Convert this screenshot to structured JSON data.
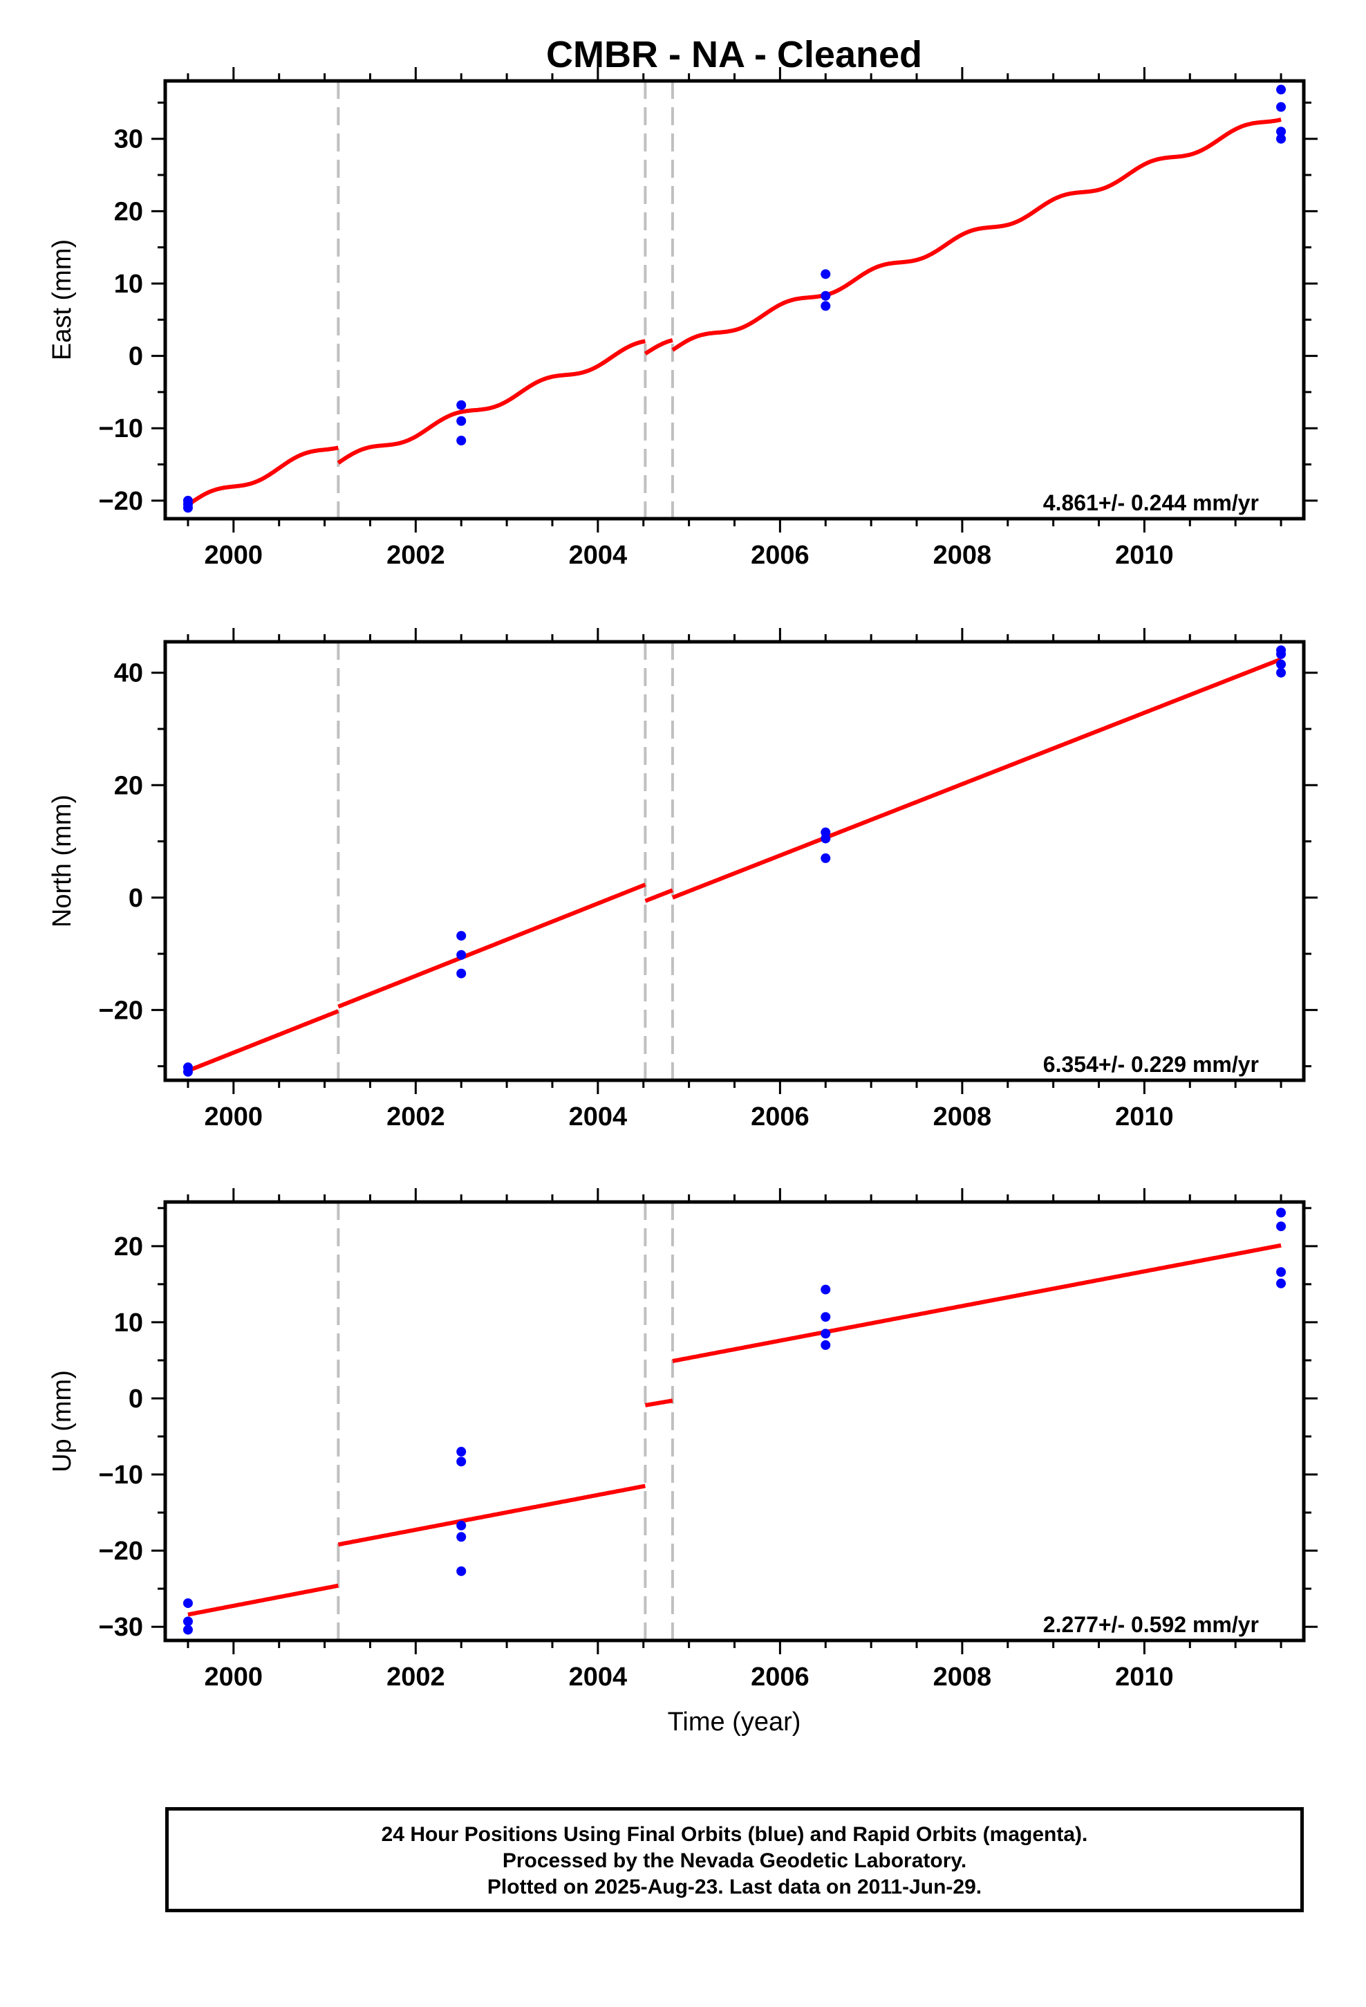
{
  "title": "CMBR  - NA - Cleaned",
  "x_axis_label": "Time (year)",
  "footer": {
    "line1": "24 Hour Positions Using Final Orbits (blue) and Rapid Orbits (magenta).",
    "line2": "Processed by the Nevada Geodetic Laboratory.",
    "line3": "Plotted on 2025-Aug-23. Last data on 2011-Jun-29."
  },
  "colors": {
    "model": "#ff0000",
    "final_orbits": "#0000ff",
    "offset_lines": "#c0c0c0",
    "axes": "#000000"
  },
  "chart_data": [
    {
      "type": "scatter",
      "ylabel": "East (mm)",
      "xlim": [
        1999.25,
        2011.75
      ],
      "ylim": [
        -22.5,
        38.0
      ],
      "xticks": [
        2000,
        2002,
        2004,
        2006,
        2008,
        2010
      ],
      "xtick_labels": [
        "2000",
        "2002",
        "2004",
        "2006",
        "2008",
        "2010"
      ],
      "yticks": [
        -20,
        -10,
        0,
        10,
        20,
        30
      ],
      "ytick_labels": [
        "−20",
        "−10",
        "0",
        "10",
        "20",
        "30"
      ],
      "rate_label": "4.861+/- 0.244 mm/yr",
      "offset_epochs": [
        2001.15,
        2004.52,
        2004.82
      ],
      "model": {
        "name": "model",
        "segments": [
          [
            [
              1999.5,
              -20.6
            ],
            [
              2001.15,
              -12.2
            ]
          ],
          [
            [
              2001.15,
              -14.8
            ],
            [
              2004.52,
              1.6
            ]
          ],
          [
            [
              2004.52,
              0.3
            ],
            [
              2004.82,
              1.6
            ]
          ],
          [
            [
              2004.82,
              0.8
            ],
            [
              2011.5,
              33.2
            ]
          ]
        ],
        "seasonal_amplitude_mm": 0.6
      },
      "series": [
        {
          "name": "final orbits",
          "x": [
            1999.5,
            1999.5,
            1999.5,
            2002.5,
            2002.5,
            2002.5,
            2006.5,
            2006.5,
            2006.5,
            2011.5,
            2011.5,
            2011.5,
            2011.5
          ],
          "y": [
            -20.0,
            -20.5,
            -21.0,
            -6.8,
            -9.0,
            -11.7,
            11.3,
            8.3,
            6.9,
            36.8,
            34.4,
            31.0,
            30.0
          ]
        }
      ]
    },
    {
      "type": "scatter",
      "ylabel": "North (mm)",
      "xlim": [
        1999.25,
        2011.75
      ],
      "ylim": [
        -32.5,
        45.5
      ],
      "xticks": [
        2000,
        2002,
        2004,
        2006,
        2008,
        2010
      ],
      "xtick_labels": [
        "2000",
        "2002",
        "2004",
        "2006",
        "2008",
        "2010"
      ],
      "yticks": [
        -20,
        0,
        20,
        40
      ],
      "ytick_labels": [
        "−20",
        "0",
        "20",
        "40"
      ],
      "rate_label": "6.354+/- 0.229 mm/yr",
      "offset_epochs": [
        2001.15,
        2004.52,
        2004.82
      ],
      "model": {
        "name": "model",
        "segments": [
          [
            [
              1999.5,
              -30.8
            ],
            [
              2001.15,
              -20.2
            ]
          ],
          [
            [
              2001.15,
              -19.4
            ],
            [
              2004.52,
              2.3
            ]
          ],
          [
            [
              2004.52,
              -0.6
            ],
            [
              2004.82,
              1.3
            ]
          ],
          [
            [
              2004.82,
              0.0
            ],
            [
              2011.5,
              42.4
            ]
          ]
        ],
        "seasonal_amplitude_mm": 0
      },
      "series": [
        {
          "name": "final orbits",
          "x": [
            1999.5,
            1999.5,
            2002.5,
            2002.5,
            2002.5,
            2006.5,
            2006.5,
            2006.5,
            2011.5,
            2011.5,
            2011.5,
            2011.5
          ],
          "y": [
            -30.2,
            -31.0,
            -6.8,
            -10.2,
            -13.5,
            11.6,
            10.5,
            7.0,
            44.0,
            43.3,
            41.5,
            40.0
          ]
        }
      ]
    },
    {
      "type": "scatter",
      "ylabel": "Up (mm)",
      "xlim": [
        1999.25,
        2011.75
      ],
      "ylim": [
        -31.8,
        25.8
      ],
      "xticks": [
        2000,
        2002,
        2004,
        2006,
        2008,
        2010
      ],
      "xtick_labels": [
        "2000",
        "2002",
        "2004",
        "2006",
        "2008",
        "2010"
      ],
      "yticks": [
        -30,
        -20,
        -10,
        0,
        10,
        20
      ],
      "ytick_labels": [
        "−30",
        "−20",
        "−10",
        "0",
        "10",
        "20"
      ],
      "rate_label": "2.277+/- 0.592 mm/yr",
      "offset_epochs": [
        2001.15,
        2004.52,
        2004.82
      ],
      "model": {
        "name": "model",
        "segments": [
          [
            [
              1999.5,
              -28.4
            ],
            [
              2001.15,
              -24.6
            ]
          ],
          [
            [
              2001.15,
              -19.2
            ],
            [
              2004.52,
              -11.5
            ]
          ],
          [
            [
              2004.52,
              -0.9
            ],
            [
              2004.82,
              -0.3
            ]
          ],
          [
            [
              2004.82,
              4.9
            ],
            [
              2011.5,
              20.1
            ]
          ]
        ],
        "seasonal_amplitude_mm": 0
      },
      "series": [
        {
          "name": "final orbits",
          "x": [
            1999.5,
            1999.5,
            1999.5,
            2002.5,
            2002.5,
            2002.5,
            2002.5,
            2002.5,
            2006.5,
            2006.5,
            2006.5,
            2006.5,
            2011.5,
            2011.5,
            2011.5,
            2011.5
          ],
          "y": [
            -26.9,
            -29.3,
            -30.4,
            -7.0,
            -8.3,
            -16.7,
            -18.2,
            -22.7,
            14.3,
            10.7,
            8.5,
            7.0,
            24.4,
            22.6,
            16.6,
            15.1
          ]
        }
      ]
    }
  ]
}
